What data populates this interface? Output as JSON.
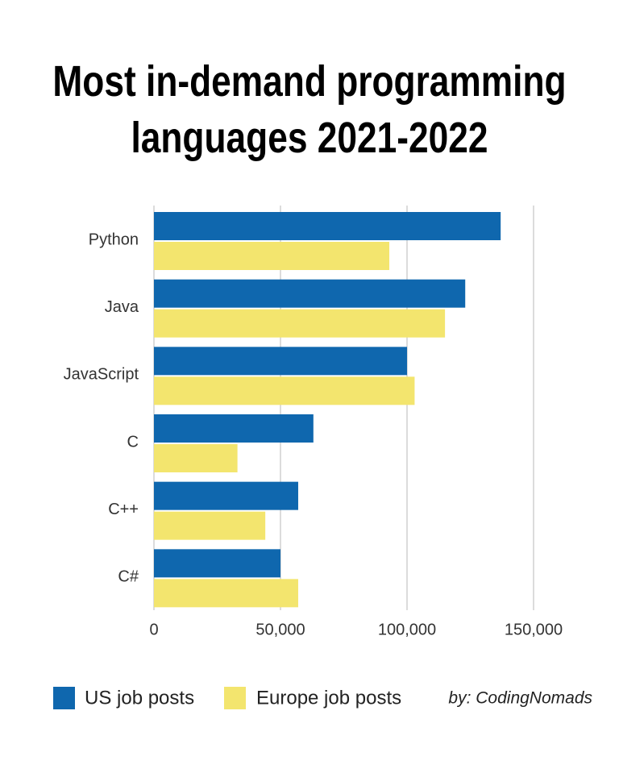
{
  "chart_data": {
    "type": "hbar",
    "title": "Most in-demand programming languages 2021-2022",
    "categories": [
      "Python",
      "Java",
      "JavaScript",
      "C",
      "C++",
      "C#"
    ],
    "series": [
      {
        "name": "US job posts",
        "color": "#0f67ae",
        "values": [
          137000,
          123000,
          100000,
          63000,
          57000,
          50000
        ]
      },
      {
        "name": "Europe job posts",
        "color": "#f3e56e",
        "values": [
          93000,
          115000,
          103000,
          33000,
          44000,
          57000
        ]
      }
    ],
    "xlim": [
      0,
      150000
    ],
    "xticks": [
      0,
      {
        "value": 50000,
        "label": "50,000"
      },
      {
        "value": 100000,
        "label": "100,000"
      },
      {
        "value": 150000,
        "label": "150,000"
      }
    ],
    "grid": true,
    "legend": "bottom",
    "source": "by: CodingNomads"
  }
}
